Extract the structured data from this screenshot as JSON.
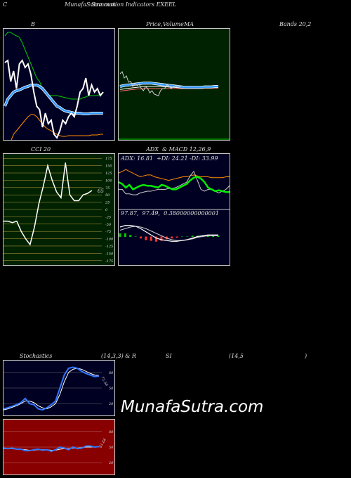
{
  "header": {
    "left_label": "C",
    "title": "MunafaSutra.com",
    "title_overlay": "Summation Indicators EXEEL"
  },
  "colors": {
    "price_line": "#ffffff",
    "bb_upper": "#00cc00",
    "bb_lower": "#ff8c00",
    "bb_mid": "#3399ff",
    "ma_green_bg": "#002200",
    "cci_bg": "#002200",
    "macd_bg": "#000022",
    "stoch_bg": "#000022",
    "rsi_bg": "#880000"
  },
  "chart_data": [
    {
      "type": "line",
      "title": "B",
      "series": [
        {
          "name": "price",
          "values": [
            48,
            45,
            75,
            60,
            85,
            50,
            45,
            55,
            50,
            65,
            90,
            110,
            115,
            140,
            120,
            135,
            130,
            150,
            155,
            145,
            130,
            135,
            125,
            120,
            125,
            110,
            90,
            85,
            70,
            95,
            80,
            90,
            85,
            95,
            90
          ]
        },
        {
          "name": "upper",
          "values": [
            10,
            5,
            5,
            8,
            10,
            12,
            20,
            30,
            40,
            50,
            60,
            70,
            75,
            85,
            90,
            95,
            95,
            95,
            95,
            96,
            97,
            98,
            99,
            100,
            100,
            100,
            100,
            98,
            97,
            95,
            95,
            95,
            95,
            93,
            90
          ]
        },
        {
          "name": "mid",
          "values": [
            110,
            100,
            95,
            90,
            88,
            87,
            85,
            83,
            82,
            80,
            80,
            80,
            82,
            85,
            90,
            95,
            100,
            105,
            110,
            112,
            115,
            117,
            118,
            119,
            120,
            120,
            120,
            121,
            121,
            121,
            120,
            120,
            120,
            120,
            120
          ]
        },
        {
          "name": "lower",
          "values": [
            180,
            170,
            160,
            150,
            145,
            140,
            135,
            130,
            125,
            122,
            122,
            125,
            130,
            135,
            140,
            143,
            145,
            148,
            150,
            152,
            153,
            153,
            152,
            152,
            152,
            152,
            152,
            152,
            152,
            152,
            151,
            151,
            151,
            150,
            150
          ]
        }
      ]
    },
    {
      "type": "line",
      "title": "Price,  MA",
      "series": [
        {
          "name": "price",
          "values": [
            90,
            85,
            100,
            95,
            110,
            108,
            120,
            112,
            118,
            115,
            125,
            130,
            120,
            125,
            135,
            130,
            138,
            140,
            142,
            130,
            125,
            125,
            115,
            120,
            125,
            120,
            118,
            122,
            120,
            118
          ]
        },
        {
          "name": "ma_a",
          "values": [
            120,
            118,
            117,
            116,
            115,
            114,
            113,
            112,
            112,
            112,
            113,
            114,
            115,
            116,
            117,
            118,
            119,
            120,
            121,
            122,
            122,
            122,
            122,
            122,
            122,
            121,
            121,
            121,
            120,
            120
          ]
        },
        {
          "name": "ma_b",
          "values": [
            127,
            126,
            125,
            124,
            123,
            122,
            121,
            120,
            120,
            120,
            120,
            120,
            120,
            121,
            121,
            122,
            122,
            123,
            123,
            123,
            123,
            123,
            123,
            123,
            123,
            123,
            123,
            122,
            122,
            122
          ]
        },
        {
          "name": "ma_c",
          "values": [
            131,
            130,
            129,
            128,
            127,
            126,
            126,
            125,
            125,
            125,
            125,
            125,
            125,
            125,
            125,
            125,
            125,
            125,
            125,
            125,
            125,
            125,
            125,
            125,
            125,
            124,
            124,
            124,
            124,
            124
          ]
        }
      ]
    },
    {
      "type": "line",
      "title": "CCI 20",
      "yticks": [
        175,
        150,
        125,
        100,
        75,
        50,
        25,
        0,
        -25,
        -50,
        -75,
        -100,
        -125,
        -150,
        -175
      ],
      "last_value_label": "65",
      "series": [
        {
          "name": "cci",
          "values": [
            -40,
            -40,
            -45,
            -40,
            -75,
            -100,
            -120,
            -60,
            20,
            80,
            150,
            100,
            60,
            40,
            160,
            50,
            30,
            30,
            50,
            55,
            65
          ]
        }
      ]
    },
    {
      "type": "line",
      "title": "ADX  & MACD 12,26,9",
      "subtitle": "ADX: 16.81  +DI: 24.21 -DI: 33.99",
      "macd_label": "97.87,  97.49,  0.38000000000001",
      "series": [
        {
          "name": "adx",
          "values": [
            28,
            26,
            22,
            25,
            20,
            22,
            24,
            25,
            24,
            24,
            23,
            22,
            25,
            24,
            22,
            20,
            20,
            22,
            24,
            26,
            30,
            33,
            34,
            32,
            28,
            22,
            20,
            18,
            19,
            18,
            17,
            17
          ]
        },
        {
          "name": "plus_di",
          "values": [
            20,
            20,
            15,
            15,
            14,
            14,
            16,
            17,
            18,
            18,
            19,
            20,
            20,
            20,
            21,
            21,
            22,
            24,
            26,
            28,
            35,
            40,
            30,
            20,
            18,
            20,
            20,
            18,
            16,
            18,
            20,
            24
          ]
        },
        {
          "name": "minus_di",
          "values": [
            38,
            40,
            42,
            40,
            38,
            36,
            34,
            35,
            36,
            36,
            34,
            33,
            32,
            31,
            30,
            31,
            32,
            33,
            34,
            34,
            35,
            36,
            35,
            34,
            34,
            34,
            33,
            33,
            33,
            33,
            34,
            34
          ]
        },
        {
          "name": "macd",
          "values": [
            12,
            14,
            14,
            13,
            10,
            6,
            2,
            -2,
            -4,
            -5,
            -6,
            -6,
            -5,
            -4,
            -2,
            0,
            1,
            2,
            2,
            2
          ]
        },
        {
          "name": "signal",
          "values": [
            8,
            10,
            12,
            13,
            12,
            10,
            7,
            4,
            1,
            -2,
            -4,
            -5,
            -5,
            -4,
            -3,
            -1,
            0,
            1,
            1,
            1
          ]
        }
      ]
    },
    {
      "type": "line",
      "title": "Stochastics",
      "params": "(14,3,3) & R",
      "yticks": [
        80,
        50,
        20
      ],
      "value_label": "72.56",
      "series": [
        {
          "name": "k",
          "values": [
            10,
            12,
            15,
            18,
            22,
            30,
            20,
            18,
            10,
            8,
            12,
            18,
            25,
            50,
            75,
            88,
            90,
            88,
            82,
            78,
            75,
            72,
            73
          ]
        },
        {
          "name": "d",
          "values": [
            8,
            10,
            13,
            16,
            20,
            25,
            25,
            22,
            16,
            12,
            10,
            14,
            20,
            38,
            62,
            80,
            86,
            88,
            86,
            82,
            78,
            75,
            74
          ]
        }
      ]
    },
    {
      "type": "line",
      "title": "SI",
      "params": "(14,5",
      "params_close": ")",
      "yticks": [
        80,
        50,
        20
      ],
      "value_label": "51.64",
      "series": [
        {
          "name": "rsi",
          "values": [
            48,
            47,
            48,
            46,
            46,
            43,
            43,
            45,
            46,
            44,
            45,
            42,
            45,
            50,
            48,
            45,
            50,
            47,
            48,
            52,
            52,
            50,
            51
          ]
        },
        {
          "name": "rsi_avg",
          "values": [
            47,
            47,
            47,
            46,
            46,
            45,
            44,
            44,
            45,
            45,
            45,
            44,
            44,
            46,
            47,
            47,
            48,
            48,
            49,
            50,
            50,
            50,
            51
          ]
        }
      ]
    }
  ],
  "labels": {
    "bands_title": "Bands 20,2",
    "ma_title_a": "Price,",
    "ma_title_b": "MA",
    "ma_overlay": "Volume",
    "watermark": "MunafaSutra.com"
  }
}
